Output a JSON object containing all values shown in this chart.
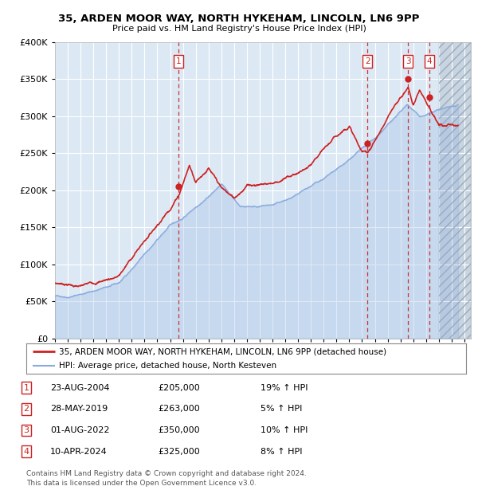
{
  "title": "35, ARDEN MOOR WAY, NORTH HYKEHAM, LINCOLN, LN6 9PP",
  "subtitle": "Price paid vs. HM Land Registry's House Price Index (HPI)",
  "ylim": [
    0,
    400000
  ],
  "yticks": [
    0,
    50000,
    100000,
    150000,
    200000,
    250000,
    300000,
    350000,
    400000
  ],
  "xlim_start": 1995.0,
  "xlim_end": 2027.5,
  "xtick_years": [
    1995,
    1996,
    1997,
    1998,
    1999,
    2000,
    2001,
    2002,
    2003,
    2004,
    2005,
    2006,
    2007,
    2008,
    2009,
    2010,
    2011,
    2012,
    2013,
    2014,
    2015,
    2016,
    2017,
    2018,
    2019,
    2020,
    2021,
    2022,
    2023,
    2024,
    2025,
    2026,
    2027
  ],
  "bg_color": "#dce9f5",
  "hpi_color": "#88aadd",
  "price_color": "#cc2222",
  "vline_sale_color": "#cc3333",
  "sale_dates_decimal": [
    2004.647,
    2019.411,
    2022.581,
    2024.275
  ],
  "sale_prices": [
    205000,
    263000,
    350000,
    325000
  ],
  "sale_labels": [
    "1",
    "2",
    "3",
    "4"
  ],
  "future_start": 2025.0,
  "legend_line1": "35, ARDEN MOOR WAY, NORTH HYKEHAM, LINCOLN, LN6 9PP (detached house)",
  "legend_line2": "HPI: Average price, detached house, North Kesteven",
  "table_rows": [
    {
      "num": "1",
      "date": "23-AUG-2004",
      "price": "£205,000",
      "hpi": "19% ↑ HPI"
    },
    {
      "num": "2",
      "date": "28-MAY-2019",
      "price": "£263,000",
      "hpi": "5% ↑ HPI"
    },
    {
      "num": "3",
      "date": "01-AUG-2022",
      "price": "£350,000",
      "hpi": "10% ↑ HPI"
    },
    {
      "num": "4",
      "date": "10-APR-2024",
      "price": "£325,000",
      "hpi": "8% ↑ HPI"
    }
  ],
  "footer": "Contains HM Land Registry data © Crown copyright and database right 2024.\nThis data is licensed under the Open Government Licence v3.0."
}
